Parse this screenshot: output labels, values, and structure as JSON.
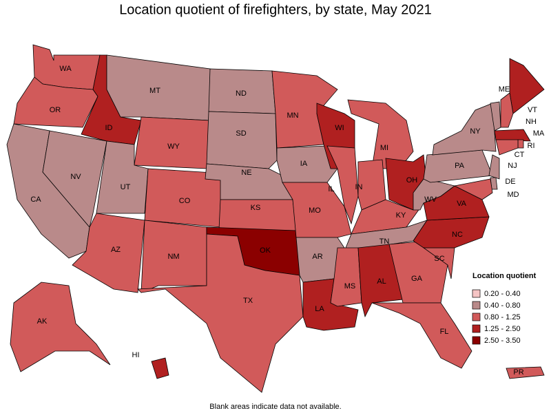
{
  "title": "Location quotient of firefighters, by state, May 2021",
  "note": "Blank areas indicate data not available.",
  "legend": {
    "title": "Location quotient",
    "items": [
      {
        "label": "0.20 - 0.40",
        "color": "#f5c4c4"
      },
      {
        "label": "0.40 - 0.80",
        "color": "#b98a8a"
      },
      {
        "label": "0.80 - 1.25",
        "color": "#d15a5a"
      },
      {
        "label": "1.25 - 2.50",
        "color": "#b02020"
      },
      {
        "label": "2.50 - 3.50",
        "color": "#8b0000"
      }
    ]
  },
  "states": [
    {
      "label": "WA",
      "category": 2
    },
    {
      "label": "OR",
      "category": 2
    },
    {
      "label": "CA",
      "category": 1
    },
    {
      "label": "NV",
      "category": 1
    },
    {
      "label": "ID",
      "category": 3
    },
    {
      "label": "MT",
      "category": 1
    },
    {
      "label": "WY",
      "category": 2
    },
    {
      "label": "UT",
      "category": 1
    },
    {
      "label": "CO",
      "category": 2
    },
    {
      "label": "AZ",
      "category": 2
    },
    {
      "label": "NM",
      "category": 2
    },
    {
      "label": "ND",
      "category": 1
    },
    {
      "label": "SD",
      "category": 1
    },
    {
      "label": "NE",
      "category": 1
    },
    {
      "label": "KS",
      "category": 2
    },
    {
      "label": "OK",
      "category": 4
    },
    {
      "label": "TX",
      "category": 2
    },
    {
      "label": "MN",
      "category": 2
    },
    {
      "label": "IA",
      "category": 1
    },
    {
      "label": "MO",
      "category": 2
    },
    {
      "label": "AR",
      "category": 1
    },
    {
      "label": "LA",
      "category": 3
    },
    {
      "label": "WI",
      "category": 3
    },
    {
      "label": "IL",
      "category": 2
    },
    {
      "label": "MI",
      "category": 2
    },
    {
      "label": "IN",
      "category": 2
    },
    {
      "label": "OH",
      "category": 3
    },
    {
      "label": "KY",
      "category": 2
    },
    {
      "label": "TN",
      "category": 1
    },
    {
      "label": "MS",
      "category": 2
    },
    {
      "label": "AL",
      "category": 3
    },
    {
      "label": "GA",
      "category": 2
    },
    {
      "label": "FL",
      "category": 2
    },
    {
      "label": "SC",
      "category": 2
    },
    {
      "label": "NC",
      "category": 3
    },
    {
      "label": "VA",
      "category": 3
    },
    {
      "label": "WV",
      "category": 1
    },
    {
      "label": "PA",
      "category": 1
    },
    {
      "label": "NY",
      "category": 1
    },
    {
      "label": "ME",
      "category": 3
    },
    {
      "label": "VT",
      "category": 1
    },
    {
      "label": "NH",
      "category": 2
    },
    {
      "label": "MA",
      "category": 3
    },
    {
      "label": "RI",
      "category": 2
    },
    {
      "label": "CT",
      "category": 2
    },
    {
      "label": "NJ",
      "category": 1
    },
    {
      "label": "DE",
      "category": 1
    },
    {
      "label": "MD",
      "category": 2
    },
    {
      "label": "AK",
      "category": 2
    },
    {
      "label": "HI",
      "category": 3
    },
    {
      "label": "PR",
      "category": 2
    }
  ]
}
